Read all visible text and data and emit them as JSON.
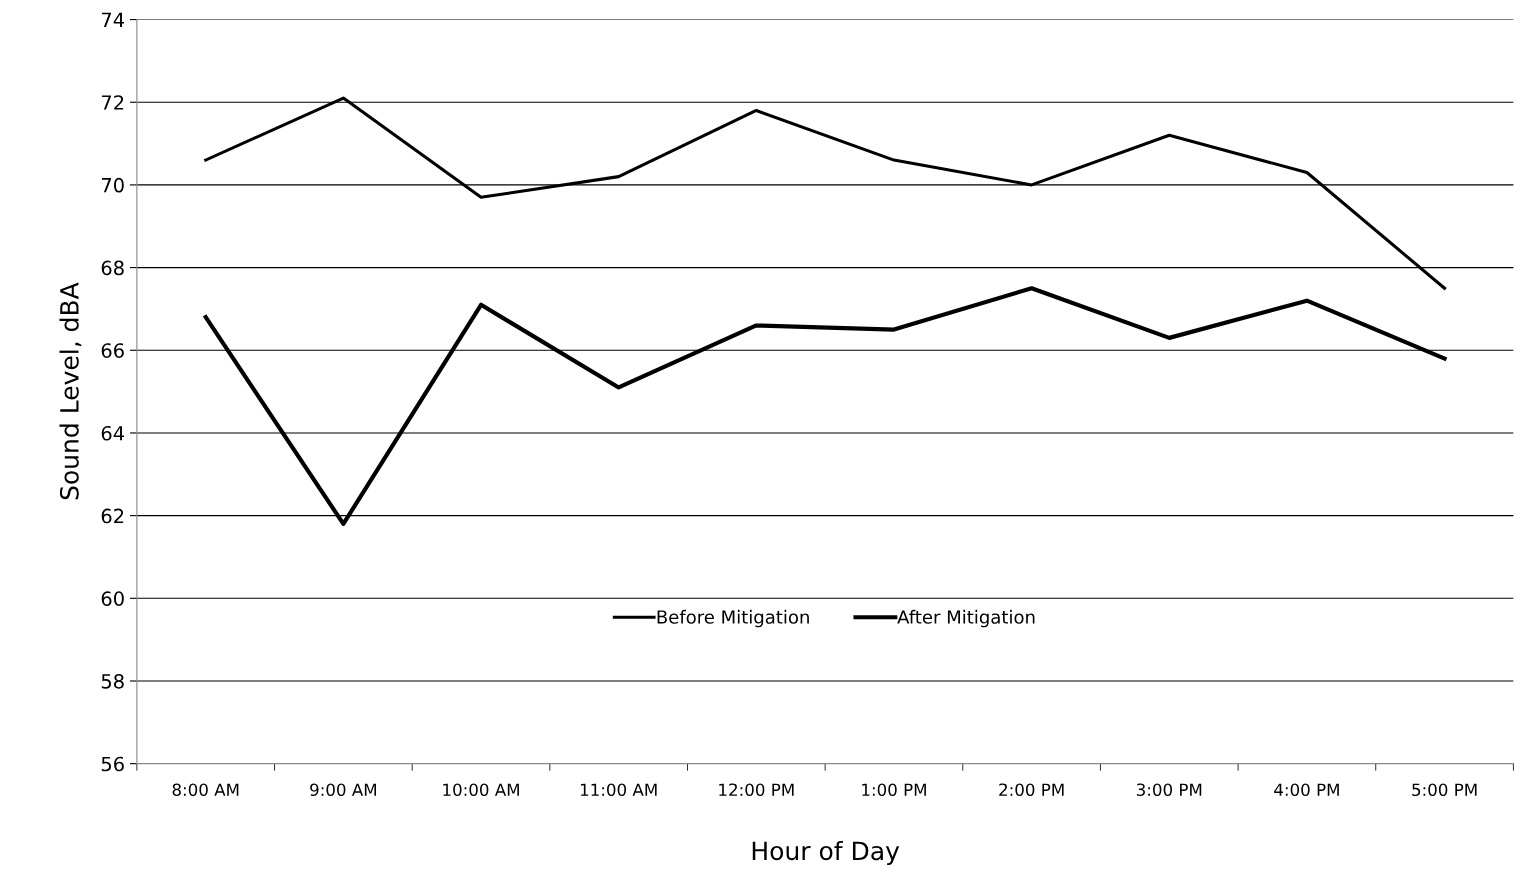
{
  "chart_data": {
    "type": "line",
    "xlabel": "Hour of Day",
    "ylabel": "Sound Level, dBA",
    "categories": [
      "8:00 AM",
      "9:00 AM",
      "10:00 AM",
      "11:00 AM",
      "12:00 PM",
      "1:00 PM",
      "2:00 PM",
      "3:00 PM",
      "4:00 PM",
      "5:00 PM"
    ],
    "series": [
      {
        "name": "Before Mitigation",
        "color": "#000000",
        "values": [
          70.6,
          72.1,
          69.7,
          70.2,
          71.8,
          70.6,
          70.0,
          71.2,
          70.3,
          67.5
        ]
      },
      {
        "name": "After Mitigation",
        "color": "#000000",
        "values": [
          66.8,
          61.8,
          67.1,
          65.1,
          66.6,
          66.5,
          67.5,
          66.3,
          67.2,
          65.8
        ]
      }
    ],
    "ylim": [
      56,
      74
    ],
    "yticks": [
      56,
      58,
      60,
      62,
      64,
      66,
      68,
      70,
      72,
      74
    ],
    "grid": "y",
    "legend": "center",
    "marker": "none",
    "line_style": "solid"
  }
}
